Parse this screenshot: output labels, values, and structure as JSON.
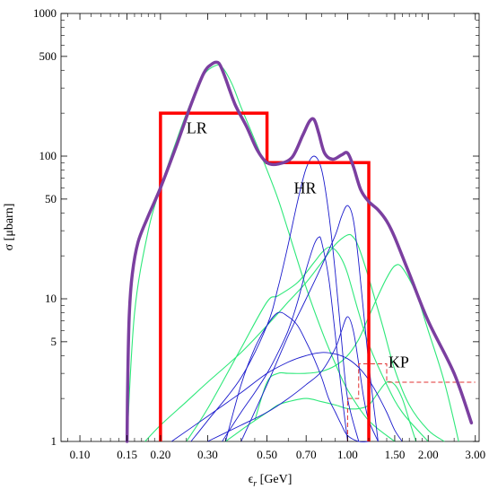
{
  "chart_data": {
    "type": "line",
    "title": "",
    "xlabel": "ϵ",
    "xlabel_sub": "r",
    "xlabel_unit": " [GeV]",
    "ylabel": "σ [μbarn]",
    "x_scale": "log",
    "y_scale": "log",
    "xlim": [
      0.085,
      3.1
    ],
    "ylim": [
      1,
      1000
    ],
    "grid": false,
    "legend": "none",
    "x_ticks": [
      {
        "value": 0.1,
        "label": "0.10"
      },
      {
        "value": 0.15,
        "label": "0.15"
      },
      {
        "value": 0.2,
        "label": "0.20"
      },
      {
        "value": 0.3,
        "label": "0.30"
      },
      {
        "value": 0.5,
        "label": "0.50"
      },
      {
        "value": 0.7,
        "label": "0.70"
      },
      {
        "value": 1.0,
        "label": "1.00"
      },
      {
        "value": 1.5,
        "label": "1.50"
      },
      {
        "value": 2.0,
        "label": "2.00"
      },
      {
        "value": 3.0,
        "label": "3.00"
      }
    ],
    "y_ticks": [
      {
        "value": 1,
        "label": "1"
      },
      {
        "value": 5,
        "label": "5"
      },
      {
        "value": 10,
        "label": "10"
      },
      {
        "value": 50,
        "label": "50"
      },
      {
        "value": 100,
        "label": "100"
      },
      {
        "value": 500,
        "label": "500"
      },
      {
        "value": 1000,
        "label": "1000"
      }
    ],
    "colors": {
      "total": "#7b3fa0",
      "green": "#2ee87a",
      "blue": "#1a1acc",
      "region": "#ff0000",
      "kp": "#e03030"
    },
    "total_curve": {
      "x": [
        0.15,
        0.151,
        0.153,
        0.157,
        0.165,
        0.18,
        0.2,
        0.23,
        0.26,
        0.29,
        0.31,
        0.325,
        0.335,
        0.35,
        0.38,
        0.42,
        0.46,
        0.5,
        0.55,
        0.62,
        0.68,
        0.72,
        0.75,
        0.78,
        0.82,
        0.88,
        0.95,
        1.0,
        1.05,
        1.12,
        1.2,
        1.3,
        1.4,
        1.5,
        1.7,
        2.0,
        2.5,
        2.9
      ],
      "y": [
        1,
        3,
        8,
        15,
        25,
        38,
        60,
        120,
        230,
        380,
        440,
        455,
        430,
        350,
        230,
        160,
        110,
        90,
        88,
        98,
        140,
        175,
        180,
        145,
        105,
        95,
        102,
        105,
        85,
        58,
        48,
        42,
        35,
        27,
        15,
        7,
        3,
        1.35
      ]
    },
    "green_curves": [
      {
        "x": [
          0.15,
          0.16,
          0.18,
          0.2,
          0.23,
          0.26,
          0.29,
          0.32,
          0.34,
          0.37,
          0.4,
          0.45,
          0.5,
          0.55,
          0.6,
          0.7,
          0.8,
          0.9,
          1.0,
          1.2,
          1.5
        ],
        "y": [
          1,
          8,
          30,
          60,
          130,
          240,
          370,
          430,
          420,
          320,
          220,
          130,
          80,
          50,
          30,
          12,
          6,
          3.5,
          2.3,
          1.4,
          1
        ]
      },
      {
        "x": [
          0.175,
          0.2,
          0.25,
          0.3,
          0.4,
          0.5,
          0.6,
          0.7,
          0.8,
          0.9,
          1.0,
          1.05,
          1.1,
          1.2,
          1.35,
          1.5,
          1.7,
          2.0,
          2.3
        ],
        "y": [
          1,
          1.3,
          1.9,
          2.6,
          4.2,
          6.5,
          9.5,
          13,
          18,
          24,
          28,
          27,
          23,
          14,
          6.5,
          3.2,
          1.8,
          1.2,
          1
        ]
      },
      {
        "x": [
          0.25,
          0.3,
          0.4,
          0.5,
          0.55,
          0.65,
          0.75,
          0.8,
          0.85,
          0.9,
          0.95,
          1.0,
          1.1,
          1.2,
          1.4,
          1.6,
          2.0
        ],
        "y": [
          1,
          1.7,
          4.5,
          9.5,
          10.5,
          13,
          18,
          21,
          23,
          22,
          19,
          15,
          8,
          4.8,
          2.5,
          1.6,
          1
        ]
      },
      {
        "x": [
          0.45,
          0.5,
          0.55,
          0.6,
          0.7,
          0.8,
          0.9,
          1.0,
          1.1,
          1.2,
          1.3,
          1.4,
          1.5,
          1.6,
          1.8,
          2.0,
          2.3,
          2.6
        ],
        "y": [
          1.4,
          2.6,
          3.0,
          3.0,
          3.0,
          3.1,
          3.4,
          4.0,
          5.2,
          7.5,
          10.5,
          14,
          17,
          16.5,
          11,
          6,
          2.6,
          1
        ]
      },
      {
        "x": [
          0.35,
          0.4,
          0.45,
          0.5,
          0.55,
          0.6,
          0.7,
          0.8,
          0.9,
          1.0,
          1.1,
          1.2,
          1.3,
          1.4,
          1.5,
          1.6,
          1.7,
          1.8
        ],
        "y": [
          1,
          1.2,
          1.4,
          1.6,
          1.8,
          1.9,
          2.0,
          1.9,
          1.8,
          1.7,
          1.7,
          1.8,
          2.2,
          2.6,
          2.5,
          2.0,
          1.4,
          1
        ]
      }
    ],
    "blue_curves": [
      {
        "x": [
          0.26,
          0.3,
          0.4,
          0.5,
          0.55,
          0.6,
          0.65,
          0.7,
          0.75,
          0.8,
          0.85,
          0.9,
          0.95,
          1.0,
          1.1
        ],
        "y": [
          1,
          1.4,
          2.8,
          6.5,
          12,
          24,
          48,
          82,
          100,
          80,
          40,
          15,
          5,
          2,
          1
        ]
      },
      {
        "x": [
          0.4,
          0.5,
          0.6,
          0.7,
          0.8,
          0.9,
          0.95,
          1.0,
          1.05,
          1.1,
          1.2,
          1.3
        ],
        "y": [
          1,
          2.5,
          5.5,
          10,
          17,
          28,
          38,
          45,
          36,
          18,
          3.5,
          1
        ]
      },
      {
        "x": [
          0.35,
          0.4,
          0.45,
          0.5,
          0.55,
          0.6,
          0.65,
          0.7,
          0.75,
          0.8,
          0.85,
          0.9,
          0.95,
          1.0,
          1.1,
          1.2
        ],
        "y": [
          1,
          2.5,
          4.5,
          6.5,
          8,
          7.5,
          6.5,
          5.0,
          3.8,
          2.8,
          2.0,
          1.6,
          1.3,
          1.1,
          0.9,
          0.8
        ]
      },
      {
        "x": [
          0.34,
          0.4,
          0.45,
          0.5,
          0.55,
          0.6,
          0.65,
          0.7,
          0.75,
          0.78,
          0.8,
          0.85,
          0.9,
          0.95,
          1.0
        ],
        "y": [
          1,
          1.6,
          2.2,
          3.0,
          4.2,
          6.0,
          9.5,
          16,
          24,
          27,
          25,
          14,
          5.5,
          2.2,
          1
        ]
      },
      {
        "x": [
          0.3,
          0.4,
          0.5,
          0.6,
          0.7,
          0.8,
          0.9,
          0.95,
          1.0,
          1.05,
          1.1,
          1.15,
          1.2,
          1.3
        ],
        "y": [
          1,
          1.3,
          1.6,
          2.0,
          2.5,
          3.1,
          4.5,
          6.0,
          7.5,
          6.0,
          3.5,
          2.0,
          1.4,
          1
        ]
      },
      {
        "x": [
          0.22,
          0.3,
          0.4,
          0.5,
          0.6,
          0.7,
          0.8,
          0.9,
          1.0,
          1.1,
          1.2,
          1.3,
          1.4,
          1.5,
          1.6
        ],
        "y": [
          1,
          1.5,
          2.2,
          3.0,
          3.6,
          4.0,
          4.2,
          4.1,
          3.8,
          3.3,
          2.7,
          2.1,
          1.6,
          1.2,
          1
        ]
      }
    ],
    "regions": [
      {
        "label": "LR",
        "x_from": 0.2,
        "x_to": 0.5,
        "value": 200,
        "label_x": 0.25,
        "label_y": 145
      },
      {
        "label": "HR",
        "x_from": 0.5,
        "x_to": 1.2,
        "value": 90,
        "label_x": 0.63,
        "label_y": 55
      }
    ],
    "kp": {
      "label": "KP",
      "label_x": 1.42,
      "label_y": 3.3,
      "steps": [
        {
          "x_from": 1.0,
          "x_to": 1.1,
          "value": 2.0
        },
        {
          "x_from": 1.1,
          "x_to": 1.4,
          "value": 3.5
        },
        {
          "x_from": 1.4,
          "x_to": 3.0,
          "value": 2.6
        }
      ]
    }
  }
}
